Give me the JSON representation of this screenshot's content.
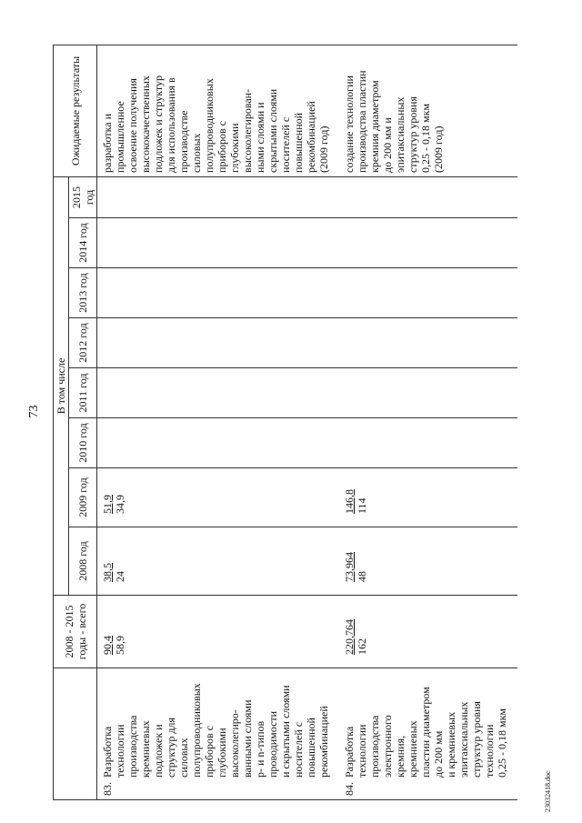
{
  "page_number": "73",
  "table": {
    "headers": {
      "total": "2008 - 2015 годы - всего",
      "subgroup": "В том числе",
      "years": [
        "2008 год",
        "2009 год",
        "2010 год",
        "2011 год",
        "2012 год",
        "2013 год",
        "2014 год",
        "2015 год"
      ],
      "results": "Ожидаемые результаты"
    },
    "rows": [
      {
        "number": "83.",
        "name": [
          "Разработка",
          "технологии",
          "производства",
          "кремниевых",
          "подложек и",
          "структур для",
          "силовых",
          "полупроводниковых",
          "приборов с",
          "глубокими",
          "высоколегиро-",
          "ванными слоями",
          "p- и n-типов",
          "проводимости",
          "и скрытыми слоями",
          "носителей с",
          "повышенной",
          "рекомбинацией"
        ],
        "amounts": [
          {
            "top": "90,4",
            "bottom": "58,9"
          },
          {
            "top": "38,5",
            "bottom": "24"
          },
          {
            "top": "51,9",
            "bottom": "34,9"
          }
        ],
        "results": [
          "разработка и",
          "промышленное",
          "освоение получения",
          "высококачественных",
          "подложек и структур",
          "для использования в",
          "производстве",
          "силовых",
          "полупроводниковых",
          "приборов с",
          "глубокими",
          "высоколегирован-",
          "ными слоями и",
          "скрытыми слоями",
          "носителей с",
          "повышенной",
          "рекомбинацией",
          "(2009 год)"
        ]
      },
      {
        "number": "84.",
        "name": [
          "Разработка",
          "технологии",
          "производства",
          "электронного",
          "кремния,",
          "кремниевых",
          "пластин диаметром",
          "до 200 мм",
          "и кремниевых",
          "эпитаксиальных",
          "структур уровня",
          "технологии",
          "0,25 - 0,18 мкм"
        ],
        "amounts": [
          {
            "top": "220,764",
            "bottom": "162"
          },
          {
            "top": "73,964",
            "bottom": "48"
          },
          {
            "top": "146,8",
            "bottom": "114"
          }
        ],
        "results": [
          "создание технологии",
          "производства пластин",
          "кремния диаметром",
          "до 200 мм и",
          "эпитаксиальных",
          "структур уровня",
          "0,25 - 0,18 мкм",
          "(2009 год)"
        ]
      }
    ]
  },
  "footer": "23032418.doc"
}
